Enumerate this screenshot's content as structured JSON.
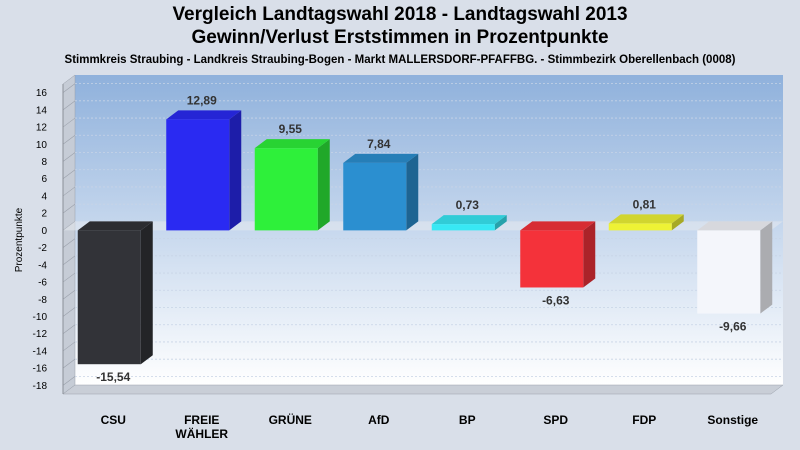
{
  "chart_data": {
    "type": "bar",
    "title": "Vergleich Landtagswahl 2018 - Landtagswahl 2013",
    "subtitle": "Gewinn/Verlust Erststimmen in Prozentpunkte",
    "caption": "Stimmkreis Straubing - Landkreis Straubing-Bogen - Markt MALLERSDORF-PFAFFBG. - Stimmbezirk Oberellenbach (0008)",
    "ylabel": "Prozentpunkte",
    "xlabel": "",
    "ylim": [
      -19,
      17
    ],
    "yticks": [
      16,
      14,
      12,
      10,
      8,
      6,
      4,
      2,
      0,
      -2,
      -4,
      -6,
      -8,
      -10,
      -12,
      -14,
      -16,
      -18
    ],
    "categories": [
      "CSU",
      "FREIE WÄHLER",
      "GRÜNE",
      "AfD",
      "BP",
      "SPD",
      "FDP",
      "Sonstige"
    ],
    "values": [
      -15.54,
      12.89,
      9.55,
      7.84,
      0.73,
      -6.63,
      0.81,
      -9.66
    ],
    "value_labels": [
      "-15,54",
      "12,89",
      "9,55",
      "7,84",
      "0,73",
      "-6,63",
      "0,81",
      "-9,66"
    ],
    "colors": [
      "#323338",
      "#2a2af2",
      "#2ef03a",
      "#2b8fd0",
      "#38e8f4",
      "#f4323a",
      "#eef235",
      "#f4f6fb"
    ],
    "grid": true,
    "legend": "none"
  }
}
